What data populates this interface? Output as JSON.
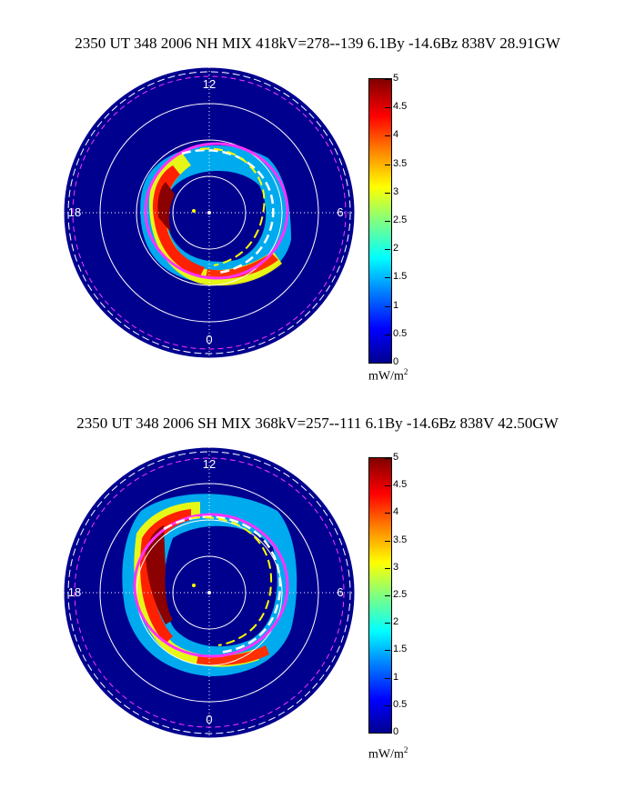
{
  "panels": [
    {
      "title": "2350 UT 348 2006 NH MIX 418kV=278--139  6.1By -14.6Bz 838V 28.91GW",
      "hour_labels": {
        "noon": "12",
        "dusk": "18",
        "dawn": "6",
        "midnight": "0"
      },
      "colorbar": {
        "ticks": [
          "0",
          "0.5",
          "1",
          "1.5",
          "2",
          "2.5",
          "3",
          "3.5",
          "4",
          "4.5",
          "5"
        ],
        "unit": "mW/m",
        "unit_exp": "2"
      }
    },
    {
      "title": "2350 UT 348 2006 SH MIX 368kV=257--111  6.1By -14.6Bz 838V 42.50GW",
      "hour_labels": {
        "noon": "12",
        "dusk": "18",
        "dawn": "6",
        "midnight": "0"
      },
      "colorbar": {
        "ticks": [
          "0",
          "0.5",
          "1",
          "1.5",
          "2",
          "2.5",
          "3",
          "3.5",
          "4",
          "4.5",
          "5"
        ],
        "unit": "mW/m",
        "unit_exp": "2"
      }
    }
  ],
  "chart_data": [
    {
      "type": "heatmap",
      "title": "2350 UT 348 2006 NH MIX 418kV=278--139  6.1By -14.6Bz 838V 28.91GW",
      "projection": "polar (magnetic local time)",
      "color_scale": {
        "min": 0,
        "max": 5,
        "unit": "mW/m^2",
        "colormap": "jet"
      },
      "theta_ticks": [
        "12",
        "18",
        "0",
        "6"
      ]
    },
    {
      "type": "heatmap",
      "title": "2350 UT 348 2006 SH MIX 368kV=257--111  6.1By -14.6Bz 838V 42.50GW",
      "projection": "polar (magnetic local time)",
      "color_scale": {
        "min": 0,
        "max": 5,
        "unit": "mW/m^2",
        "colormap": "jet"
      },
      "theta_ticks": [
        "12",
        "18",
        "0",
        "6"
      ]
    }
  ],
  "colors": {
    "background_disc": "#00008f",
    "grid": "#ffffff",
    "boundary_magenta": "#ff33ff",
    "boundary_yellow": "#ffff00"
  }
}
